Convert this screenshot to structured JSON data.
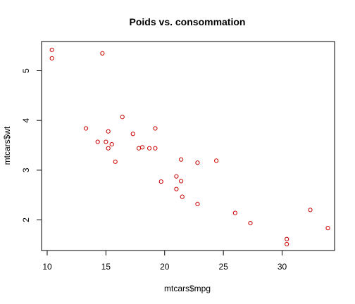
{
  "chart_data": {
    "type": "scatter",
    "title": "Poids vs. consommation",
    "xlabel": "mtcars$mpg",
    "ylabel": "mtcars$wt",
    "xlim": [
      10,
      34
    ],
    "ylim": [
      1.5,
      5.5
    ],
    "x_ticks": [
      "10",
      "15",
      "20",
      "25",
      "30"
    ],
    "y_ticks": [
      "2",
      "3",
      "4",
      "5"
    ],
    "grid": false,
    "marker": "open-circle",
    "point_color": "#cc0000",
    "points": [
      {
        "x": 10.4,
        "y": 5.42
      },
      {
        "x": 10.4,
        "y": 5.25
      },
      {
        "x": 14.7,
        "y": 5.35
      },
      {
        "x": 13.3,
        "y": 3.84
      },
      {
        "x": 14.3,
        "y": 3.57
      },
      {
        "x": 15.0,
        "y": 3.57
      },
      {
        "x": 15.2,
        "y": 3.78
      },
      {
        "x": 15.2,
        "y": 3.44
      },
      {
        "x": 15.5,
        "y": 3.52
      },
      {
        "x": 15.8,
        "y": 3.17
      },
      {
        "x": 16.4,
        "y": 4.07
      },
      {
        "x": 17.3,
        "y": 3.73
      },
      {
        "x": 17.8,
        "y": 3.44
      },
      {
        "x": 18.1,
        "y": 3.46
      },
      {
        "x": 18.7,
        "y": 3.44
      },
      {
        "x": 19.2,
        "y": 3.44
      },
      {
        "x": 19.2,
        "y": 3.84
      },
      {
        "x": 19.7,
        "y": 2.77
      },
      {
        "x": 21.0,
        "y": 2.62
      },
      {
        "x": 21.0,
        "y": 2.875
      },
      {
        "x": 21.4,
        "y": 3.215
      },
      {
        "x": 21.4,
        "y": 2.78
      },
      {
        "x": 21.5,
        "y": 2.465
      },
      {
        "x": 22.8,
        "y": 3.15
      },
      {
        "x": 22.8,
        "y": 2.32
      },
      {
        "x": 24.4,
        "y": 3.19
      },
      {
        "x": 26.0,
        "y": 2.14
      },
      {
        "x": 27.3,
        "y": 1.935
      },
      {
        "x": 30.4,
        "y": 1.615
      },
      {
        "x": 30.4,
        "y": 1.513
      },
      {
        "x": 32.4,
        "y": 2.2
      },
      {
        "x": 33.9,
        "y": 1.835
      }
    ]
  }
}
